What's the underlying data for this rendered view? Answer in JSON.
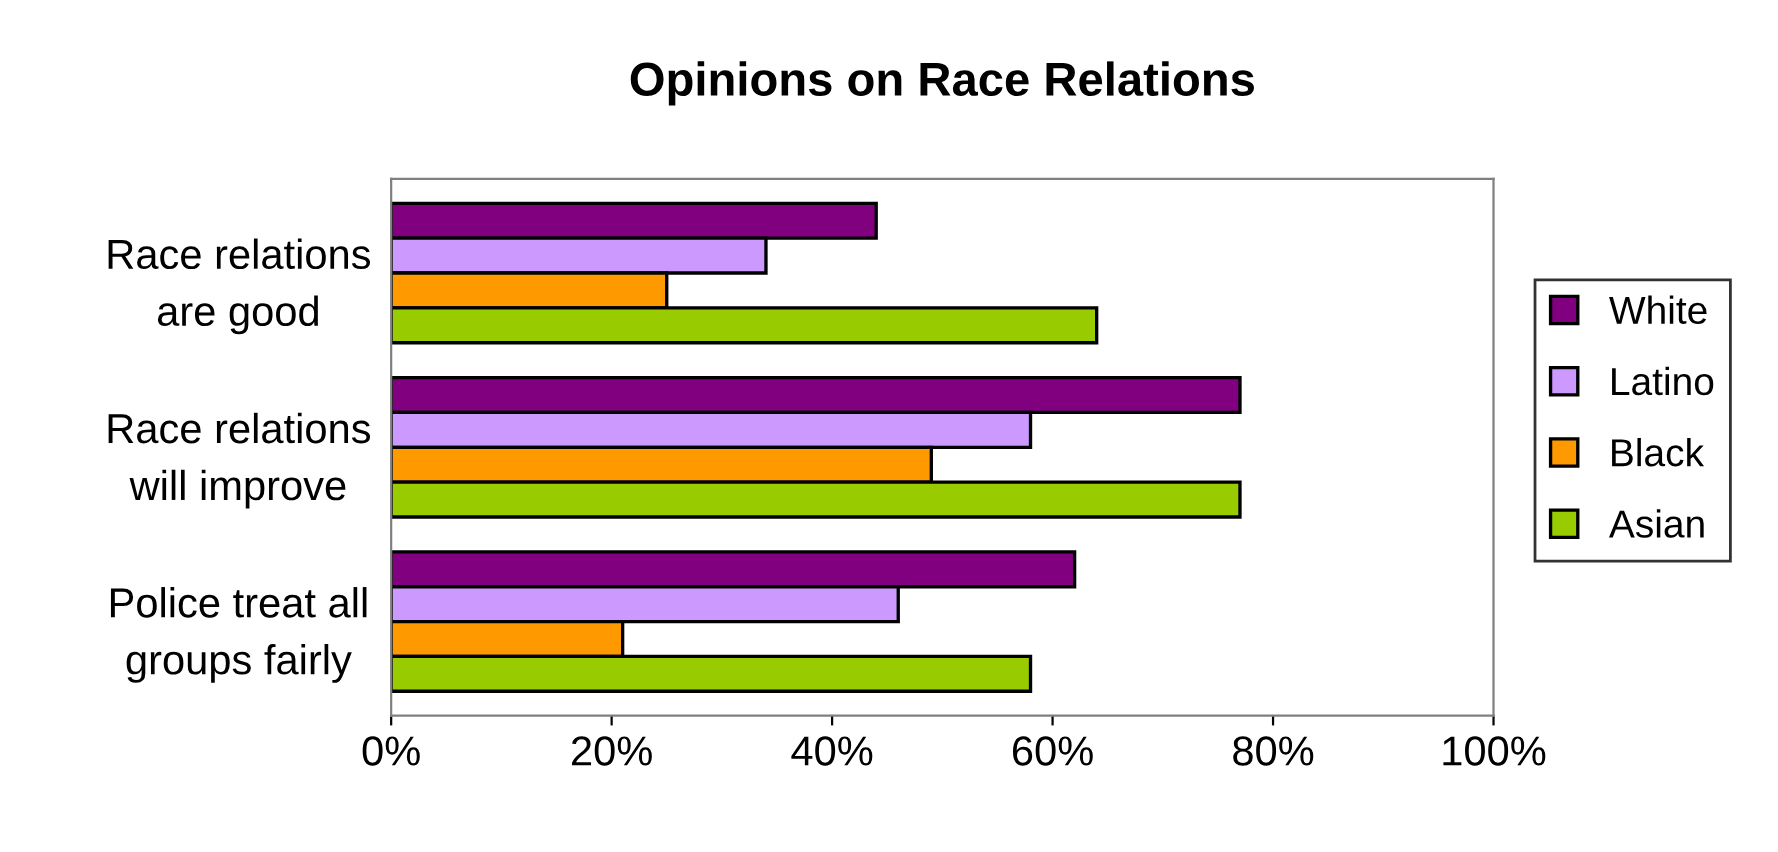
{
  "chart_data": {
    "type": "bar",
    "orientation": "horizontal",
    "title": "Opinions on Race Relations",
    "categories": [
      "Race relations\nare good",
      "Race relations\nwill improve",
      "Police treat all\ngroups fairly"
    ],
    "series": [
      {
        "name": "White",
        "color": "#800080",
        "values": [
          44,
          77,
          62
        ]
      },
      {
        "name": "Latino",
        "color": "#cc99ff",
        "values": [
          34,
          58,
          46
        ]
      },
      {
        "name": "Black",
        "color": "#ff9900",
        "values": [
          25,
          49,
          21
        ]
      },
      {
        "name": "Asian",
        "color": "#99cc00",
        "values": [
          64,
          77,
          58
        ]
      }
    ],
    "xlim": [
      0,
      100
    ],
    "xticks": [
      {
        "value": 0,
        "label": "0%"
      },
      {
        "value": 20,
        "label": "20%"
      },
      {
        "value": 40,
        "label": "40%"
      },
      {
        "value": 60,
        "label": "60%"
      },
      {
        "value": 80,
        "label": "80%"
      },
      {
        "value": 100,
        "label": "100%"
      }
    ],
    "grid": false,
    "legend": "right"
  }
}
